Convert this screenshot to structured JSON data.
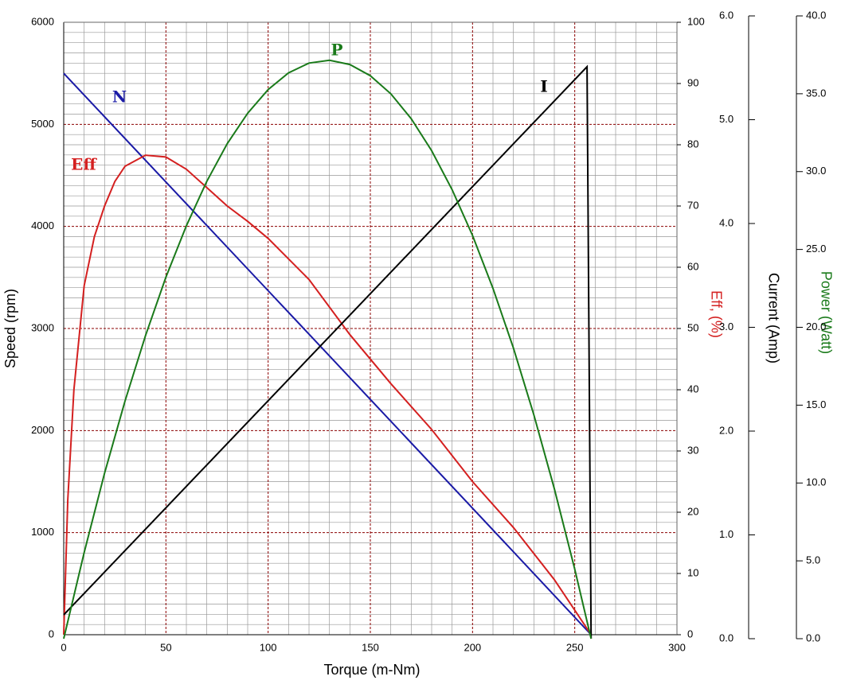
{
  "chart_data": {
    "type": "line",
    "xlabel": "Torque (m-Nm)",
    "ylabel": "Speed (rpm)",
    "y2label": "Eff, (%)",
    "y3label": "Current (Amp)",
    "y4label": "Power (Watt)",
    "xlim": [
      0,
      300
    ],
    "xticks": [
      0,
      50,
      100,
      150,
      200,
      250,
      300
    ],
    "ylim": [
      0,
      6000
    ],
    "yticks": [
      0,
      1000,
      2000,
      3000,
      4000,
      5000,
      6000
    ],
    "y2lim": [
      0,
      100
    ],
    "y2ticks": [
      0,
      10,
      20,
      30,
      40,
      50,
      60,
      70,
      80,
      90,
      100
    ],
    "y3lim": [
      0,
      6
    ],
    "y3ticks": [
      {
        "value": 0,
        "label": "0.0"
      },
      {
        "value": 1,
        "label": "1.0"
      },
      {
        "value": 2,
        "label": "2.0"
      },
      {
        "value": 3,
        "label": "3.0"
      },
      {
        "value": 4,
        "label": "4.0"
      },
      {
        "value": 5,
        "label": "5.0"
      },
      {
        "value": 6,
        "label": "6.0"
      }
    ],
    "y4lim": [
      0,
      40
    ],
    "y4ticks": [
      {
        "value": 0,
        "label": "0.0"
      },
      {
        "value": 5,
        "label": "5.0"
      },
      {
        "value": 10,
        "label": "10.0"
      },
      {
        "value": 15,
        "label": "15.0"
      },
      {
        "value": 20,
        "label": "20.0"
      },
      {
        "value": 25,
        "label": "25.0"
      },
      {
        "value": 30,
        "label": "30.0"
      },
      {
        "value": 35,
        "label": "35.0"
      },
      {
        "value": 40,
        "label": "40.0"
      }
    ],
    "grid": true,
    "series": [
      {
        "name": "N",
        "color": "#1a1aa6",
        "axis": "y",
        "x": [
          0,
          50,
          100,
          150,
          200,
          258
        ],
        "values": [
          5500,
          4435,
          3370,
          2305,
          1240,
          0
        ]
      },
      {
        "name": "Eff",
        "color": "#d42020",
        "axis": "y2",
        "x": [
          0,
          2,
          5,
          10,
          15,
          20,
          25,
          30,
          40,
          50,
          60,
          70,
          80,
          90,
          100,
          120,
          140,
          160,
          180,
          200,
          220,
          240,
          250,
          258
        ],
        "values": [
          0,
          22,
          40,
          57,
          65,
          70,
          74,
          76.5,
          78.3,
          78,
          76,
          73,
          70,
          67.5,
          64.7,
          58,
          49,
          41,
          33.5,
          25,
          17.5,
          9,
          4,
          0
        ]
      },
      {
        "name": "I",
        "color": "#000000",
        "axis": "y3",
        "x": [
          0,
          256,
          258
        ],
        "values": [
          0.23,
          5.51,
          0
        ]
      },
      {
        "name": "P",
        "color": "#1a7a1a",
        "axis": "y4",
        "x": [
          0,
          10,
          20,
          30,
          40,
          50,
          60,
          70,
          80,
          90,
          100,
          110,
          120,
          130,
          140,
          150,
          160,
          170,
          180,
          190,
          200,
          210,
          220,
          230,
          240,
          250,
          258
        ],
        "values": [
          0,
          5.54,
          10.63,
          15.27,
          19.47,
          23.22,
          26.52,
          29.38,
          31.79,
          33.75,
          35.27,
          36.34,
          36.97,
          37.15,
          36.88,
          36.16,
          35.0,
          33.4,
          31.34,
          28.84,
          25.9,
          22.5,
          18.66,
          14.38,
          9.64,
          4.46,
          0
        ]
      }
    ]
  }
}
